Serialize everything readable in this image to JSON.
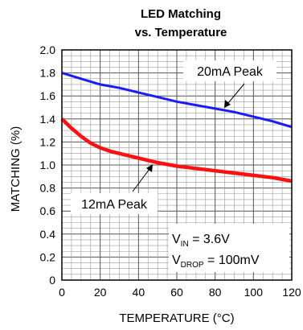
{
  "chart_data": {
    "type": "line",
    "title_line1": "LED Matching",
    "title_line2": "vs. Temperature",
    "xlabel": "TEMPERATURE (°C)",
    "ylabel": "MATCHING (%)",
    "xlim": [
      0,
      120
    ],
    "ylim": [
      0,
      2.0
    ],
    "x_ticks": [
      "0",
      "20",
      "40",
      "60",
      "80",
      "100",
      "120"
    ],
    "y_ticks": [
      "0",
      "0.2",
      "0.4",
      "0.6",
      "0.8",
      "1.0",
      "1.2",
      "1.4",
      "1.6",
      "1.8",
      "2.0"
    ],
    "grid": true,
    "series": [
      {
        "name": "20mA Peak",
        "color": "#1a1aff",
        "x": [
          0,
          10,
          20,
          30,
          40,
          50,
          60,
          70,
          80,
          90,
          100,
          110,
          120
        ],
        "y": [
          1.8,
          1.75,
          1.7,
          1.67,
          1.63,
          1.59,
          1.55,
          1.52,
          1.49,
          1.46,
          1.42,
          1.38,
          1.33
        ]
      },
      {
        "name": "12mA Peak",
        "color": "#ff1010",
        "x": [
          0,
          5,
          10,
          15,
          20,
          25,
          30,
          40,
          50,
          60,
          70,
          80,
          90,
          100,
          110,
          120
        ],
        "y": [
          1.4,
          1.32,
          1.25,
          1.19,
          1.15,
          1.12,
          1.1,
          1.06,
          1.02,
          0.99,
          0.97,
          0.95,
          0.93,
          0.91,
          0.89,
          0.86
        ]
      }
    ],
    "annotations": {
      "label_20ma": "20mA Peak",
      "label_12ma": "12mA Peak",
      "vin_label": "V",
      "vin_sub": "IN",
      "vin_value": " = 3.6V",
      "vdrop_label": "V",
      "vdrop_sub": "DROP",
      "vdrop_value": " = 100mV"
    }
  }
}
